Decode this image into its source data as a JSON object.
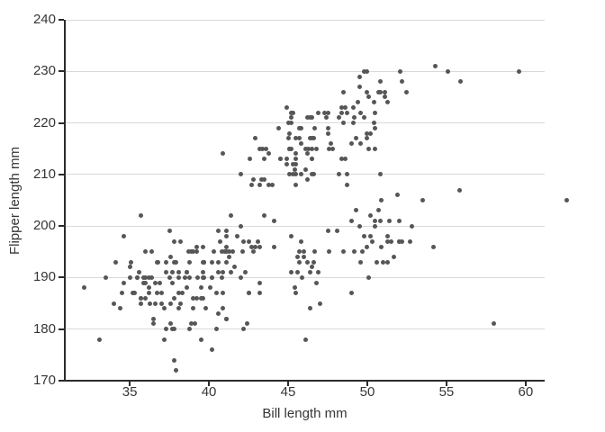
{
  "chart_data": {
    "type": "scatter",
    "title": "",
    "xlabel": "Bill length mm",
    "ylabel": "Flipper length mm",
    "xlim": [
      30.9,
      61.2
    ],
    "ylim": [
      170,
      240
    ],
    "x_ticks": [
      35,
      40,
      45,
      50,
      55,
      60
    ],
    "y_ticks": [
      170,
      180,
      190,
      200,
      210,
      220,
      230,
      240
    ],
    "grid": "horizontal-major-only",
    "legend": "none",
    "point_color": "#565656",
    "gridline_color": "#d9d9d9",
    "axis_line_color": "#2b2b2b",
    "text_color": "#363636",
    "points": [
      [
        39.1,
        181
      ],
      [
        39.5,
        186
      ],
      [
        40.3,
        195
      ],
      [
        36.7,
        193
      ],
      [
        39.3,
        190
      ],
      [
        38.9,
        181
      ],
      [
        39.2,
        195
      ],
      [
        34.1,
        193
      ],
      [
        42.0,
        190
      ],
      [
        37.8,
        186
      ],
      [
        37.8,
        180
      ],
      [
        41.1,
        182
      ],
      [
        38.6,
        191
      ],
      [
        34.6,
        198
      ],
      [
        36.6,
        185
      ],
      [
        38.7,
        195
      ],
      [
        42.5,
        197
      ],
      [
        34.4,
        184
      ],
      [
        46.0,
        194
      ],
      [
        37.8,
        174
      ],
      [
        37.7,
        180
      ],
      [
        35.9,
        189
      ],
      [
        38.2,
        185
      ],
      [
        38.8,
        180
      ],
      [
        35.3,
        187
      ],
      [
        40.6,
        183
      ],
      [
        40.5,
        187
      ],
      [
        37.9,
        172
      ],
      [
        40.5,
        180
      ],
      [
        39.5,
        178
      ],
      [
        37.2,
        178
      ],
      [
        39.5,
        188
      ],
      [
        40.9,
        184
      ],
      [
        36.4,
        195
      ],
      [
        39.2,
        196
      ],
      [
        38.8,
        190
      ],
      [
        42.2,
        180
      ],
      [
        37.6,
        181
      ],
      [
        39.8,
        184
      ],
      [
        36.5,
        182
      ],
      [
        40.8,
        195
      ],
      [
        36.0,
        186
      ],
      [
        44.1,
        196
      ],
      [
        37.0,
        185
      ],
      [
        39.6,
        190
      ],
      [
        41.1,
        182
      ],
      [
        37.5,
        190
      ],
      [
        36.0,
        190
      ],
      [
        42.3,
        191
      ],
      [
        39.6,
        186
      ],
      [
        40.1,
        188
      ],
      [
        35.0,
        190
      ],
      [
        42.0,
        200
      ],
      [
        34.5,
        187
      ],
      [
        41.4,
        191
      ],
      [
        39.0,
        186
      ],
      [
        40.6,
        193
      ],
      [
        36.5,
        181
      ],
      [
        37.6,
        194
      ],
      [
        35.7,
        185
      ],
      [
        41.3,
        195
      ],
      [
        37.6,
        185
      ],
      [
        41.1,
        196
      ],
      [
        36.4,
        190
      ],
      [
        41.6,
        192
      ],
      [
        35.5,
        190
      ],
      [
        41.1,
        198
      ],
      [
        35.9,
        190
      ],
      [
        41.8,
        198
      ],
      [
        33.5,
        190
      ],
      [
        39.7,
        190
      ],
      [
        39.6,
        196
      ],
      [
        45.8,
        197
      ],
      [
        35.5,
        190
      ],
      [
        42.8,
        195
      ],
      [
        40.9,
        191
      ],
      [
        37.2,
        184
      ],
      [
        36.2,
        187
      ],
      [
        42.1,
        195
      ],
      [
        34.6,
        189
      ],
      [
        42.9,
        196
      ],
      [
        36.7,
        187
      ],
      [
        35.1,
        193
      ],
      [
        37.3,
        180
      ],
      [
        41.3,
        194
      ],
      [
        36.3,
        185
      ],
      [
        36.9,
        189
      ],
      [
        38.3,
        187
      ],
      [
        38.9,
        195
      ],
      [
        35.7,
        186
      ],
      [
        41.1,
        193
      ],
      [
        34.0,
        185
      ],
      [
        39.6,
        193
      ],
      [
        36.2,
        190
      ],
      [
        40.8,
        190
      ],
      [
        38.1,
        187
      ],
      [
        40.2,
        176
      ],
      [
        33.1,
        178
      ],
      [
        43.2,
        189
      ],
      [
        35.0,
        192
      ],
      [
        41.0,
        195
      ],
      [
        37.7,
        191
      ],
      [
        37.8,
        197
      ],
      [
        37.9,
        193
      ],
      [
        39.7,
        193
      ],
      [
        38.6,
        191
      ],
      [
        38.2,
        197
      ],
      [
        38.1,
        191
      ],
      [
        43.2,
        196
      ],
      [
        38.1,
        190
      ],
      [
        45.6,
        191
      ],
      [
        39.7,
        193
      ],
      [
        42.2,
        197
      ],
      [
        39.6,
        191
      ],
      [
        42.7,
        196
      ],
      [
        38.6,
        188
      ],
      [
        37.3,
        193
      ],
      [
        35.7,
        186
      ],
      [
        41.1,
        199
      ],
      [
        36.2,
        188
      ],
      [
        37.7,
        189
      ],
      [
        40.2,
        190
      ],
      [
        41.4,
        202
      ],
      [
        35.2,
        187
      ],
      [
        40.6,
        199
      ],
      [
        38.8,
        193
      ],
      [
        41.5,
        195
      ],
      [
        39.0,
        184
      ],
      [
        44.1,
        201
      ],
      [
        38.5,
        190
      ],
      [
        43.1,
        197
      ],
      [
        36.8,
        193
      ],
      [
        37.5,
        199
      ],
      [
        38.1,
        184
      ],
      [
        41.1,
        195
      ],
      [
        35.6,
        191
      ],
      [
        40.2,
        193
      ],
      [
        37.0,
        187
      ],
      [
        39.7,
        193
      ],
      [
        40.2,
        190
      ],
      [
        40.6,
        191
      ],
      [
        32.1,
        188
      ],
      [
        40.7,
        197
      ],
      [
        37.3,
        191
      ],
      [
        39.0,
        195
      ],
      [
        39.2,
        186
      ],
      [
        36.6,
        189
      ],
      [
        36.0,
        195
      ],
      [
        37.8,
        193
      ],
      [
        36.0,
        189
      ],
      [
        35.7,
        202
      ],
      [
        46.1,
        211
      ],
      [
        50.0,
        230
      ],
      [
        48.7,
        210
      ],
      [
        50.0,
        218
      ],
      [
        47.6,
        215
      ],
      [
        46.5,
        210
      ],
      [
        45.4,
        211
      ],
      [
        46.7,
        219
      ],
      [
        43.3,
        209
      ],
      [
        46.8,
        215
      ],
      [
        40.9,
        214
      ],
      [
        49.0,
        216
      ],
      [
        45.5,
        210
      ],
      [
        48.4,
        213
      ],
      [
        45.8,
        210
      ],
      [
        49.3,
        217
      ],
      [
        42.0,
        210
      ],
      [
        49.2,
        221
      ],
      [
        46.2,
        209
      ],
      [
        48.7,
        222
      ],
      [
        50.2,
        218
      ],
      [
        45.1,
        215
      ],
      [
        46.5,
        213
      ],
      [
        46.3,
        215
      ],
      [
        42.9,
        217
      ],
      [
        46.1,
        215
      ],
      [
        44.5,
        213
      ],
      [
        47.8,
        215
      ],
      [
        48.2,
        210
      ],
      [
        50.0,
        217
      ],
      [
        47.3,
        222
      ],
      [
        42.8,
        209
      ],
      [
        45.1,
        210
      ],
      [
        59.6,
        230
      ],
      [
        49.1,
        220
      ],
      [
        48.4,
        222
      ],
      [
        42.6,
        213
      ],
      [
        44.4,
        219
      ],
      [
        44.0,
        208
      ],
      [
        48.7,
        208
      ],
      [
        42.7,
        208
      ],
      [
        49.6,
        216
      ],
      [
        45.3,
        210
      ],
      [
        49.6,
        222
      ],
      [
        50.5,
        219
      ],
      [
        43.6,
        215
      ],
      [
        45.5,
        213
      ],
      [
        50.5,
        215
      ],
      [
        44.9,
        213
      ],
      [
        45.2,
        215
      ],
      [
        46.6,
        210
      ],
      [
        48.5,
        220
      ],
      [
        45.1,
        215
      ],
      [
        50.1,
        215
      ],
      [
        46.5,
        213
      ],
      [
        45.0,
        220
      ],
      [
        43.8,
        208
      ],
      [
        45.5,
        208
      ],
      [
        43.2,
        208
      ],
      [
        50.4,
        220
      ],
      [
        45.3,
        222
      ],
      [
        46.2,
        221
      ],
      [
        45.7,
        217
      ],
      [
        54.3,
        231
      ],
      [
        45.8,
        219
      ],
      [
        49.8,
        230
      ],
      [
        46.5,
        217
      ],
      [
        55.1,
        230
      ],
      [
        43.5,
        209
      ],
      [
        48.6,
        213
      ],
      [
        45.5,
        214
      ],
      [
        50.5,
        222
      ],
      [
        44.9,
        212
      ],
      [
        45.2,
        221
      ],
      [
        46.6,
        217
      ],
      [
        48.5,
        226
      ],
      [
        45.1,
        218
      ],
      [
        50.1,
        225
      ],
      [
        46.5,
        215
      ],
      [
        45.0,
        217
      ],
      [
        43.8,
        214
      ],
      [
        45.5,
        212
      ],
      [
        43.2,
        215
      ],
      [
        50.4,
        224
      ],
      [
        45.3,
        212
      ],
      [
        46.2,
        214
      ],
      [
        45.7,
        219
      ],
      [
        55.9,
        228
      ],
      [
        45.8,
        216
      ],
      [
        49.8,
        221
      ],
      [
        49.5,
        229
      ],
      [
        43.5,
        213
      ],
      [
        50.7,
        226
      ],
      [
        47.7,
        216
      ],
      [
        46.4,
        221
      ],
      [
        48.2,
        221
      ],
      [
        46.5,
        221
      ],
      [
        46.4,
        217
      ],
      [
        48.6,
        223
      ],
      [
        47.5,
        222
      ],
      [
        51.1,
        225
      ],
      [
        45.2,
        220
      ],
      [
        45.2,
        222
      ],
      [
        49.1,
        223
      ],
      [
        52.5,
        226
      ],
      [
        47.4,
        221
      ],
      [
        50.0,
        226
      ],
      [
        44.9,
        223
      ],
      [
        50.8,
        228
      ],
      [
        43.4,
        215
      ],
      [
        51.3,
        224
      ],
      [
        47.5,
        218
      ],
      [
        52.1,
        230
      ],
      [
        47.5,
        219
      ],
      [
        52.2,
        228
      ],
      [
        45.5,
        217
      ],
      [
        49.5,
        227
      ],
      [
        44.5,
        213
      ],
      [
        50.8,
        226
      ],
      [
        49.4,
        224
      ],
      [
        46.9,
        222
      ],
      [
        48.4,
        223
      ],
      [
        51.1,
        226
      ],
      [
        46.5,
        192
      ],
      [
        50.0,
        196
      ],
      [
        51.3,
        193
      ],
      [
        45.4,
        188
      ],
      [
        52.7,
        197
      ],
      [
        45.2,
        198
      ],
      [
        46.1,
        178
      ],
      [
        51.3,
        197
      ],
      [
        46.0,
        195
      ],
      [
        51.3,
        198
      ],
      [
        46.6,
        193
      ],
      [
        51.7,
        194
      ],
      [
        47.0,
        185
      ],
      [
        52.0,
        201
      ],
      [
        45.9,
        190
      ],
      [
        50.5,
        201
      ],
      [
        50.3,
        197
      ],
      [
        58.0,
        181
      ],
      [
        46.4,
        184
      ],
      [
        49.2,
        195
      ],
      [
        42.4,
        181
      ],
      [
        48.5,
        195
      ],
      [
        43.2,
        187
      ],
      [
        50.6,
        193
      ],
      [
        46.7,
        195
      ],
      [
        52.0,
        197
      ],
      [
        50.5,
        200
      ],
      [
        49.5,
        200
      ],
      [
        46.4,
        191
      ],
      [
        52.8,
        200
      ],
      [
        40.9,
        187
      ],
      [
        54.2,
        196
      ],
      [
        42.5,
        187
      ],
      [
        51.0,
        193
      ],
      [
        49.7,
        195
      ],
      [
        47.5,
        199
      ],
      [
        47.6,
        195
      ],
      [
        52.0,
        197
      ],
      [
        46.9,
        191
      ],
      [
        53.5,
        205
      ],
      [
        49.0,
        187
      ],
      [
        46.2,
        193
      ],
      [
        50.9,
        205
      ],
      [
        45.5,
        187
      ],
      [
        50.9,
        196
      ],
      [
        50.8,
        201
      ],
      [
        50.1,
        190
      ],
      [
        49.0,
        201
      ],
      [
        51.5,
        197
      ],
      [
        49.8,
        198
      ],
      [
        48.1,
        199
      ],
      [
        51.4,
        201
      ],
      [
        45.7,
        193
      ],
      [
        50.7,
        203
      ],
      [
        42.5,
        187
      ],
      [
        52.2,
        197
      ],
      [
        45.2,
        191
      ],
      [
        49.3,
        203
      ],
      [
        50.2,
        202
      ],
      [
        45.6,
        194
      ],
      [
        51.9,
        206
      ],
      [
        46.8,
        189
      ],
      [
        45.7,
        195
      ],
      [
        55.8,
        207
      ],
      [
        43.5,
        202
      ],
      [
        49.6,
        193
      ],
      [
        50.8,
        210
      ],
      [
        50.2,
        198
      ],
      [
        62.6,
        205
      ]
    ]
  }
}
